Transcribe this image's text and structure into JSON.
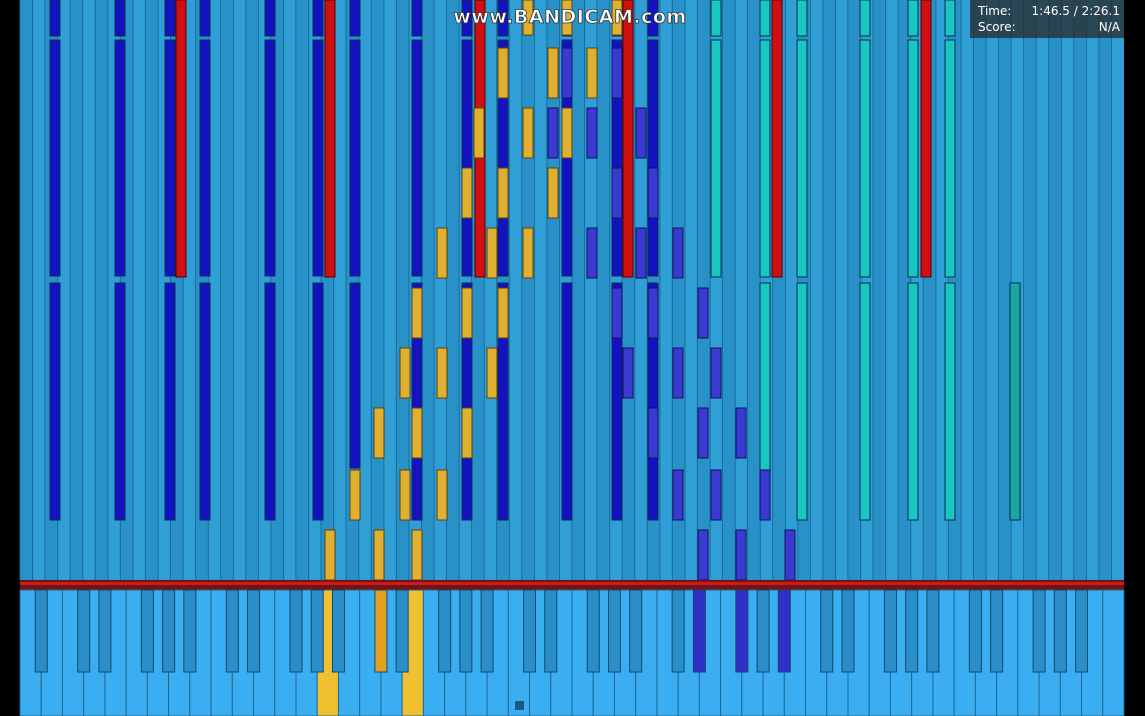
{
  "watermark": "www.BANDICAM.com",
  "info": {
    "time_label": "Time:",
    "time_value": "1:46.5 / 2:26.1",
    "score_label": "Score:",
    "score_value": "N/A"
  }
}
